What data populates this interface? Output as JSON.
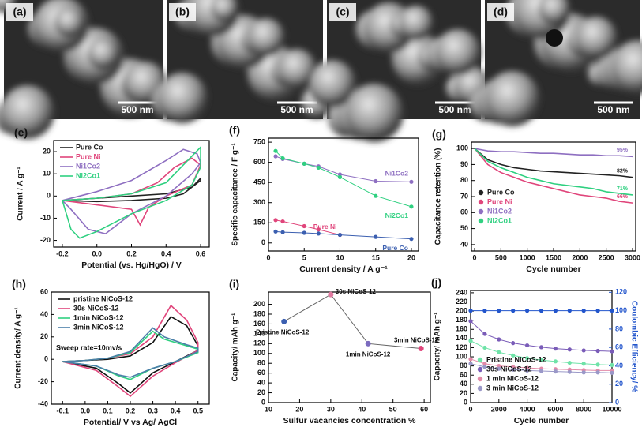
{
  "images": [
    {
      "label": "(a)",
      "scale": "500 nm"
    },
    {
      "label": "(b)",
      "scale": "500 nm"
    },
    {
      "label": "(c)",
      "scale": "500 nm"
    },
    {
      "label": "(d)",
      "scale": "500 nm"
    }
  ],
  "chart_data": [
    {
      "panel": "(e)",
      "type": "line",
      "xlabel": "Potential (vs. Hg/HgO) / V",
      "ylabel": "Current / A g⁻¹",
      "xlim": [
        -0.25,
        0.65
      ],
      "xticks": [
        -0.2,
        {
          "value": 0,
          "label": "0.0"
        },
        0.2,
        0.4,
        0.6
      ],
      "ylim": [
        -23,
        25
      ],
      "yticks": [
        -20,
        -10,
        0,
        10,
        20
      ],
      "legend": "upper left",
      "legend_colored": true,
      "markers": false,
      "series": [
        {
          "name": "Pure Co",
          "color": "#222222",
          "x": [
            -0.2,
            0,
            0.2,
            0.4,
            0.55,
            0.6,
            0.6,
            0.5,
            0.4,
            0.2,
            0,
            -0.2
          ],
          "values": [
            -2,
            -1,
            0,
            1,
            4,
            8,
            7,
            1,
            -1,
            -2,
            -2.5,
            -2
          ]
        },
        {
          "name": "Pure Ni",
          "color": "#e0457b",
          "x": [
            -0.2,
            0,
            0.2,
            0.35,
            0.45,
            0.55,
            0.6,
            0.55,
            0.4,
            0.3,
            0.25,
            0.2,
            0,
            -0.2
          ],
          "values": [
            -2,
            -1,
            1,
            6,
            13,
            17,
            14,
            5,
            0,
            -5,
            -13,
            -6,
            -4,
            -2
          ]
        },
        {
          "name": "Ni1Co2",
          "color": "#8e6fc1",
          "x": [
            -0.2,
            0,
            0.2,
            0.4,
            0.5,
            0.58,
            0.6,
            0.55,
            0.4,
            0.2,
            0.05,
            -0.05,
            -0.15,
            -0.2
          ],
          "values": [
            -2,
            2,
            7,
            16,
            21,
            19,
            15,
            10,
            0,
            -8,
            -17,
            -15,
            -6,
            -2
          ]
        },
        {
          "name": "Ni2Co1",
          "color": "#2fd080",
          "x": [
            -0.2,
            0,
            0.2,
            0.4,
            0.5,
            0.6,
            0.6,
            0.55,
            0.4,
            0.2,
            0,
            -0.1,
            -0.15,
            -0.2
          ],
          "values": [
            -2,
            -1,
            1,
            6,
            14,
            22,
            13,
            5,
            -2,
            -8,
            -16,
            -19,
            -15,
            -2
          ]
        }
      ]
    },
    {
      "panel": "(f)",
      "type": "line",
      "xlabel": "Current density / A g⁻¹",
      "ylabel": "Specific capacitance / F g⁻¹",
      "xlim": [
        0,
        21
      ],
      "xticks": [
        0,
        5,
        10,
        15,
        20
      ],
      "ylim": [
        -60,
        780
      ],
      "yticks": [
        0,
        150,
        300,
        450,
        600,
        750
      ],
      "legend": "inline",
      "legend_colored": true,
      "markers": true,
      "x": [
        1,
        2,
        5,
        7,
        10,
        15,
        20
      ],
      "series": [
        {
          "name": "Ni1Co2",
          "color": "#8e6fc1",
          "values": [
            645,
            625,
            590,
            570,
            510,
            460,
            455
          ]
        },
        {
          "name": "Ni2Co1",
          "color": "#2fd080",
          "values": [
            685,
            630,
            590,
            560,
            490,
            350,
            270
          ]
        },
        {
          "name": "Pure Ni",
          "color": "#e0457b",
          "values": [
            170,
            160,
            125,
            100,
            60,
            null,
            null
          ]
        },
        {
          "name": "Pure Co",
          "color": "#3b5fb0",
          "values": [
            85,
            80,
            75,
            70,
            60,
            45,
            30
          ]
        }
      ]
    },
    {
      "panel": "(g)",
      "type": "line",
      "xlabel": "Cycle number",
      "ylabel": "Capacitance retention (%)",
      "xlim": [
        -60,
        3060
      ],
      "xticks": [
        0,
        500,
        1000,
        1500,
        2000,
        2500,
        3000
      ],
      "ylim": [
        36,
        104
      ],
      "yticks": [
        40,
        50,
        60,
        70,
        80,
        90,
        100
      ],
      "legend": "lower left",
      "legend_colored": true,
      "markers": false,
      "x": [
        0,
        250,
        500,
        750,
        1000,
        1250,
        1500,
        1750,
        2000,
        2250,
        2500,
        2750,
        3000
      ],
      "series": [
        {
          "name": "Pure Co",
          "color": "#222222",
          "values": [
            100,
            93,
            90,
            88,
            87,
            86,
            85.5,
            85,
            84.5,
            84,
            83.5,
            83,
            82
          ],
          "value_labels": [
            null,
            null,
            null,
            null,
            null,
            null,
            null,
            null,
            null,
            null,
            null,
            null,
            "82%"
          ]
        },
        {
          "name": "Pure Ni",
          "color": "#e0457b",
          "values": [
            100,
            90,
            85,
            82,
            79,
            77,
            75,
            73,
            71,
            70,
            69,
            67,
            66
          ],
          "value_labels": [
            null,
            null,
            null,
            null,
            null,
            null,
            null,
            null,
            null,
            null,
            null,
            null,
            "66%"
          ]
        },
        {
          "name": "Ni1Co2",
          "color": "#8e6fc1",
          "values": [
            100,
            98.5,
            98,
            98,
            97.5,
            97,
            97,
            96.5,
            96,
            96,
            95.5,
            95.5,
            95
          ],
          "value_labels": [
            null,
            null,
            null,
            null,
            null,
            null,
            null,
            null,
            null,
            null,
            null,
            null,
            "95%"
          ]
        },
        {
          "name": "Ni2Co1",
          "color": "#2fd080",
          "values": [
            100,
            92,
            88,
            85,
            82,
            80,
            78,
            77,
            76,
            75,
            73,
            72,
            71
          ],
          "value_labels": [
            null,
            null,
            null,
            null,
            null,
            null,
            null,
            null,
            null,
            null,
            null,
            null,
            "71%"
          ]
        }
      ]
    },
    {
      "panel": "(h)",
      "type": "line",
      "xlabel": "Potential/ V vs Ag/ AgCl",
      "ylabel": "Current density/ A g⁻¹",
      "xlim": [
        -0.15,
        0.55
      ],
      "xticks": [
        -0.1,
        {
          "value": 0,
          "label": "0.0"
        },
        0.1,
        0.2,
        0.3,
        0.4,
        0.5
      ],
      "ylim": [
        -40,
        60
      ],
      "yticks": [
        -40,
        -20,
        0,
        20,
        40,
        60
      ],
      "legend": "upper left",
      "legend_colored": false,
      "markers": false,
      "annotation": "Sweep rate=10mv/s",
      "series": [
        {
          "name": "pristine NiCoS-12",
          "color": "#111111",
          "x": [
            -0.1,
            0,
            0.1,
            0.2,
            0.3,
            0.38,
            0.45,
            0.5,
            0.5,
            0.4,
            0.3,
            0.2,
            0.15,
            0.05,
            -0.1
          ],
          "values": [
            -2,
            -1,
            0,
            3,
            15,
            38,
            30,
            12,
            8,
            -2,
            -12,
            -30,
            -22,
            -8,
            -2
          ]
        },
        {
          "name": "30s NiCoS-12",
          "color": "#e0457b",
          "x": [
            -0.1,
            0,
            0.1,
            0.2,
            0.3,
            0.38,
            0.45,
            0.5,
            0.5,
            0.4,
            0.3,
            0.2,
            0.15,
            0.05,
            -0.1
          ],
          "values": [
            -2,
            -1,
            1,
            5,
            20,
            48,
            35,
            15,
            8,
            -3,
            -15,
            -33,
            -25,
            -10,
            -2
          ]
        },
        {
          "name": "1min NiCoS-12",
          "color": "#2fd080",
          "x": [
            -0.1,
            0,
            0.1,
            0.2,
            0.3,
            0.35,
            0.45,
            0.5,
            0.5,
            0.4,
            0.3,
            0.2,
            0.15,
            0.05,
            -0.1
          ],
          "values": [
            -2,
            -1,
            1,
            6,
            25,
            18,
            12,
            9,
            6,
            -2,
            -8,
            -18,
            -15,
            -6,
            -2
          ]
        },
        {
          "name": "3min NiCoS-12",
          "color": "#4a7fa8",
          "x": [
            -0.1,
            0,
            0.1,
            0.2,
            0.3,
            0.35,
            0.45,
            0.5,
            0.5,
            0.4,
            0.3,
            0.2,
            0.15,
            0.05,
            -0.1
          ],
          "values": [
            -2,
            -1,
            1,
            7,
            28,
            20,
            13,
            10,
            7,
            -2,
            -8,
            -16,
            -14,
            -6,
            -2
          ]
        }
      ]
    },
    {
      "panel": "(i)",
      "type": "scatter",
      "line": true,
      "xlabel": "Sulfur vacancies concentration %",
      "ylabel": "Capacity/ mAh g⁻¹",
      "xlim": [
        10,
        62
      ],
      "xticks": [
        10,
        20,
        30,
        40,
        50,
        60
      ],
      "ylim": [
        0,
        225
      ],
      "yticks": [
        0,
        20,
        40,
        60,
        80,
        100,
        120,
        140,
        160,
        180,
        200
      ],
      "x": [
        15,
        30,
        42,
        59
      ],
      "values": [
        165,
        220,
        120,
        110
      ],
      "point_labels": [
        "Pristine NiCoS-12",
        "30s NiCoS-12",
        "1min NiCoS-12",
        "3min NiCoS-12"
      ],
      "colors": [
        "#3b5fb0",
        "#e07aa0",
        "#7b6bbf",
        "#e0457b"
      ],
      "line_color": "#666666"
    },
    {
      "panel": "(j)",
      "type": "line",
      "xlabel": "Cycle number",
      "ylabel": "Capacity/ mAh g⁻¹",
      "y2label": "Coulombic Efficiency/ %",
      "xlim": [
        0,
        10000
      ],
      "xticks": [
        0,
        2000,
        4000,
        6000,
        8000,
        10000
      ],
      "ylim": [
        0,
        245
      ],
      "yticks": [
        0,
        20,
        40,
        60,
        80,
        100,
        120,
        140,
        160,
        180,
        200,
        220,
        240
      ],
      "y2lim": [
        0,
        122
      ],
      "y2ticks": [
        0,
        20,
        40,
        60,
        80,
        100,
        120
      ],
      "y2color": "#2255cc",
      "legend": "lower left",
      "legend_colored": false,
      "markers": true,
      "x": [
        0,
        1000,
        2000,
        3000,
        4000,
        5000,
        6000,
        7000,
        8000,
        9000,
        10000
      ],
      "series": [
        {
          "name": "Pristine NiCoS-12",
          "color": "#6fe3a8",
          "values": [
            135,
            120,
            110,
            103,
            97,
            93,
            90,
            87,
            85,
            83,
            82
          ]
        },
        {
          "name": "30s NiCoS-12",
          "color": "#7a5cb8",
          "values": [
            178,
            150,
            138,
            130,
            125,
            121,
            118,
            116,
            114,
            113,
            112
          ]
        },
        {
          "name": "1 min NiCoS-12",
          "color": "#e38aa8",
          "values": [
            95,
            85,
            80,
            78,
            76,
            74,
            73,
            72,
            71,
            70,
            70
          ]
        },
        {
          "name": "3 min NiCoS-12",
          "color": "#9a98c8",
          "values": [
            85,
            78,
            74,
            72,
            70,
            69,
            68,
            67,
            66,
            66,
            65
          ]
        },
        {
          "color": "#2255cc",
          "axis": "y2",
          "values": [
            100,
            100,
            100,
            100,
            100,
            100,
            100,
            100,
            100,
            100,
            100
          ]
        }
      ]
    }
  ]
}
